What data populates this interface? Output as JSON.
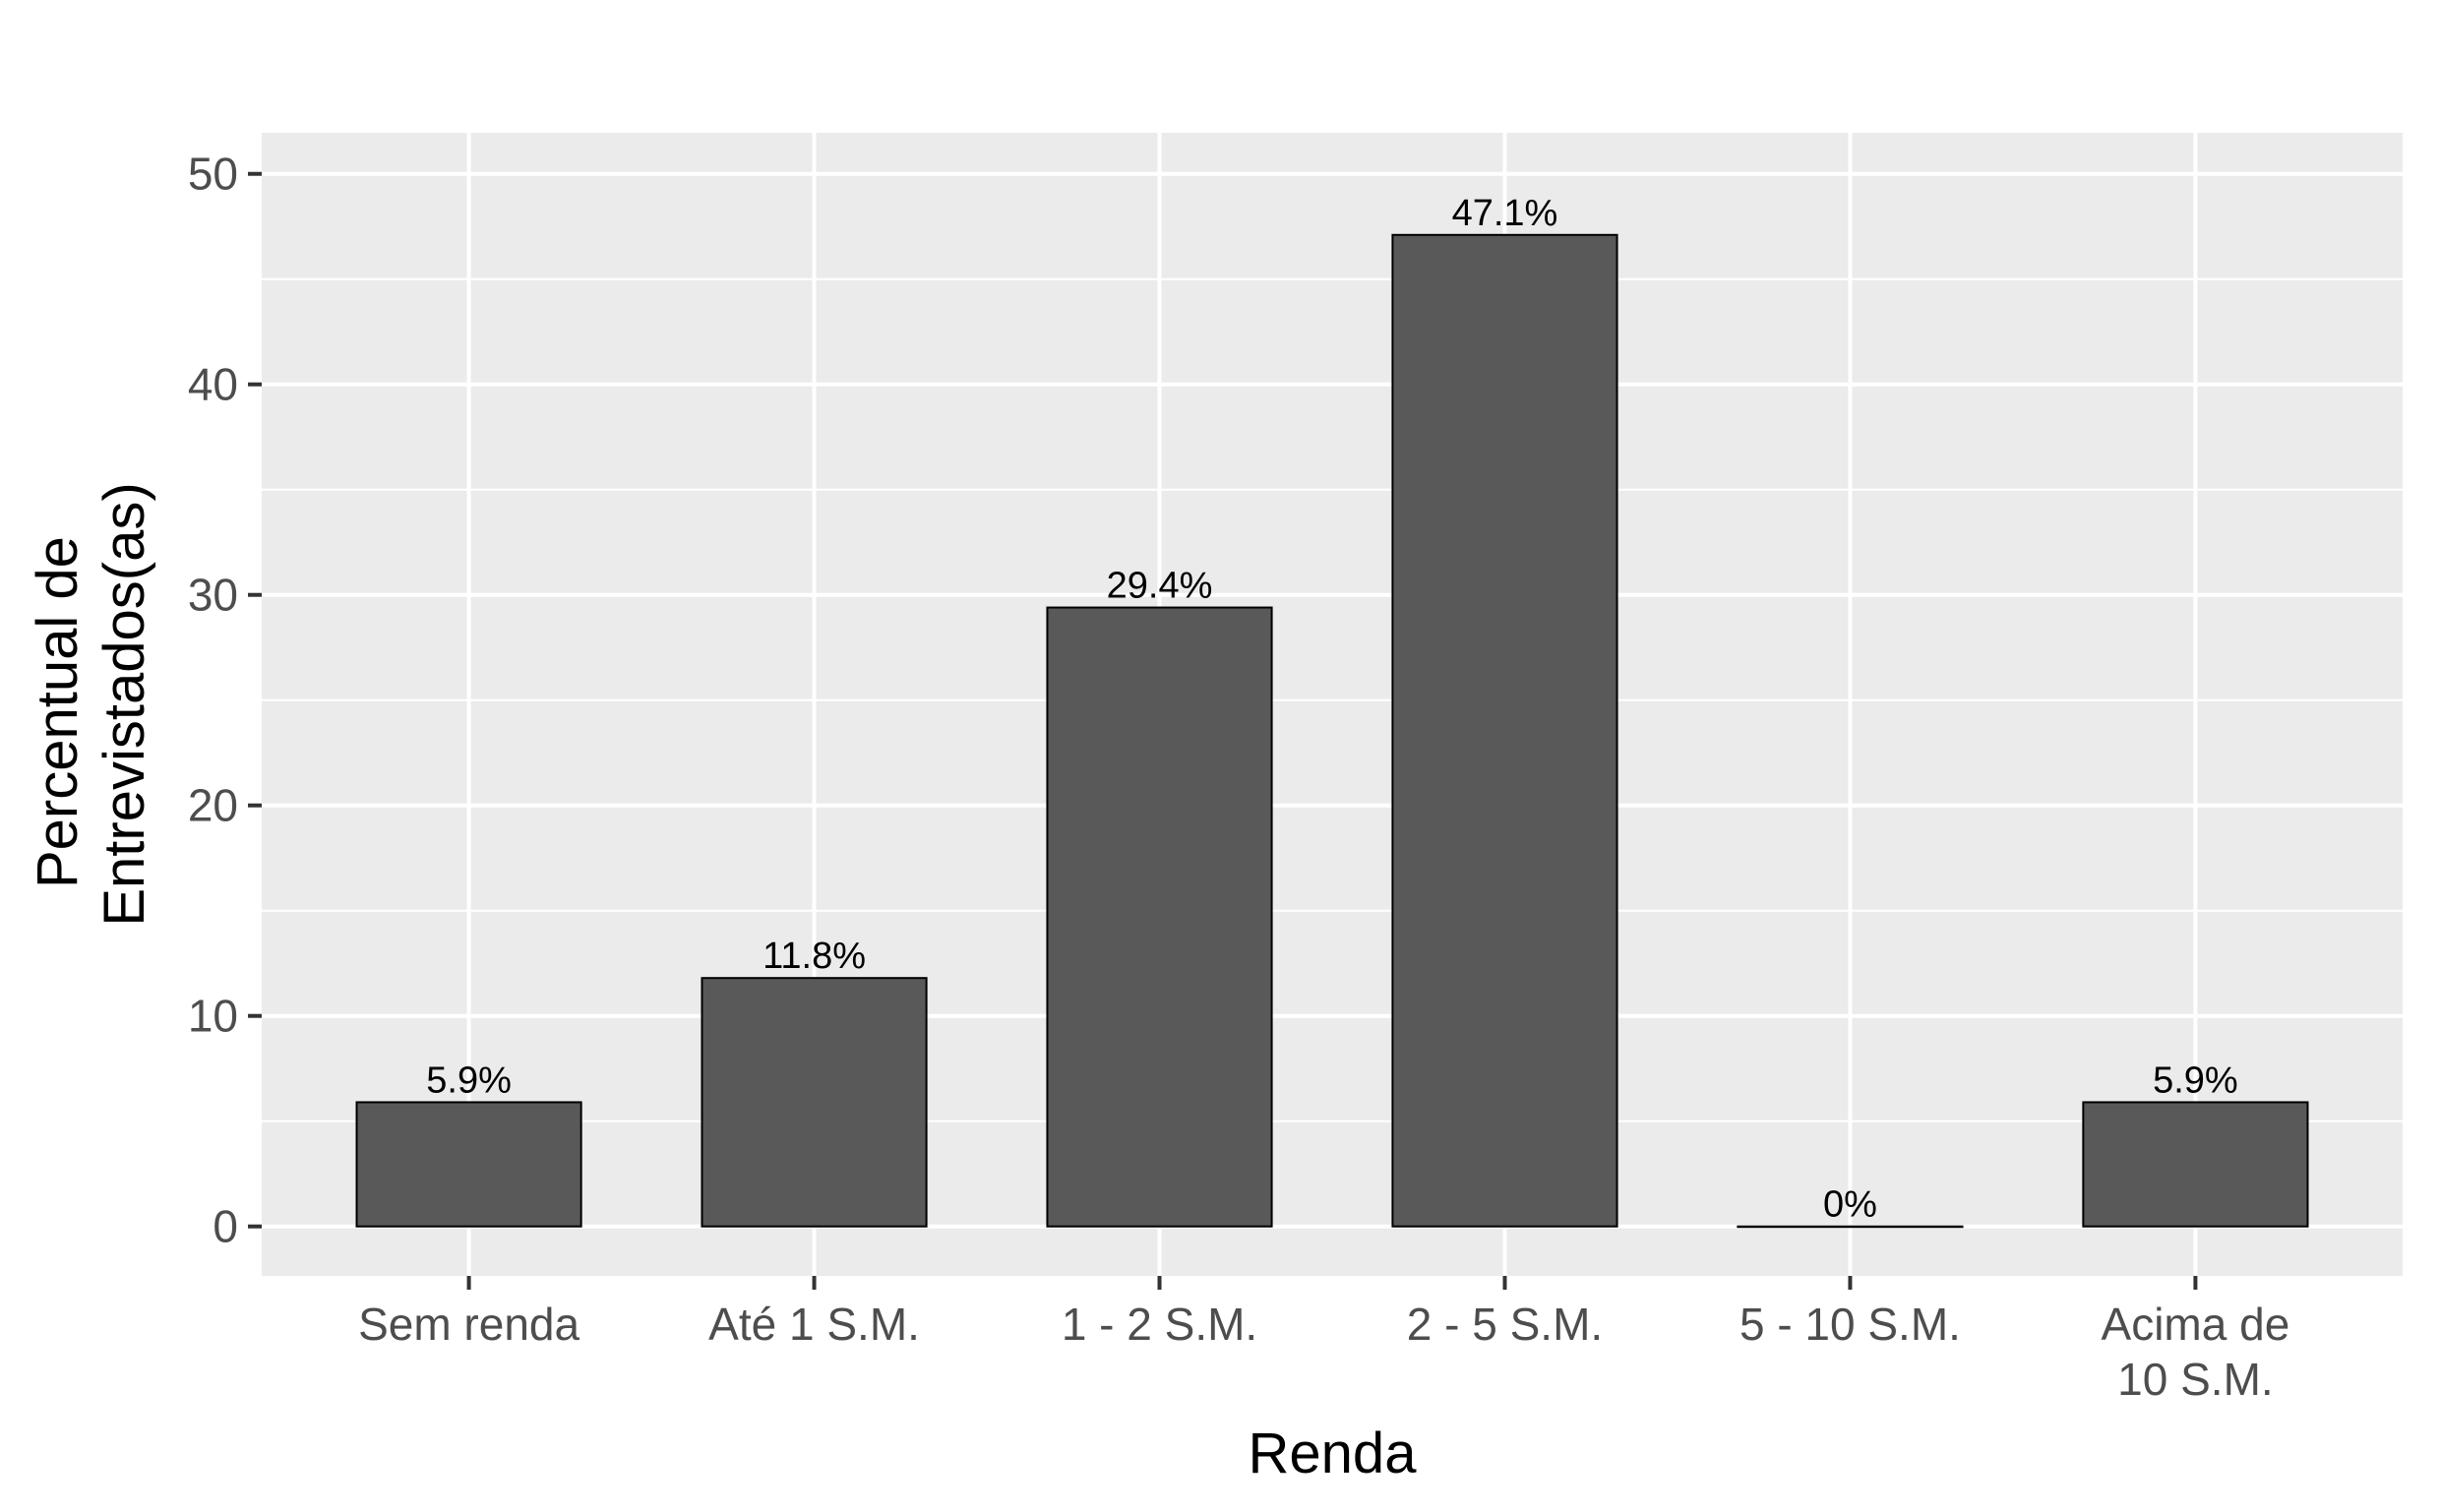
{
  "chart_data": {
    "type": "bar",
    "categories": [
      "Sem renda",
      "Até 1 S.M.",
      "1 - 2 S.M.",
      "2 - 5 S.M.",
      "5 - 10 S.M.",
      "Acima de\n10 S.M."
    ],
    "values": [
      5.9,
      11.8,
      29.4,
      47.1,
      0,
      5.9
    ],
    "data_labels": [
      "5.9%",
      "11.8%",
      "29.4%",
      "47.1%",
      "0%",
      "5.9%"
    ],
    "title": "",
    "xlabel": "Renda",
    "ylabel_lines": [
      "Percentual de",
      "Entrevistados(as)"
    ],
    "yticks": [
      0,
      10,
      20,
      30,
      40,
      50
    ],
    "ylim": [
      -2.35,
      51.95
    ],
    "grid": true,
    "legend": "none",
    "colors": {
      "panel_bg": "#ebebeb",
      "grid": "#ffffff",
      "bar_fill": "#595959",
      "bar_stroke": "#000000",
      "tick_text": "#4d4d4d",
      "tick_mark": "#333333"
    }
  }
}
